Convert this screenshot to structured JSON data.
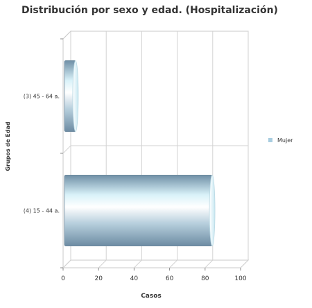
{
  "chart_data": {
    "type": "bar",
    "orientation": "horizontal",
    "title": "Distribución por sexo y edad. (Hospitalización)",
    "xlabel": "Casos",
    "ylabel": "Grupos de Edad",
    "categories": [
      "(3) 45 - 64 a.",
      "(4) 15 - 44 a."
    ],
    "series": [
      {
        "name": "Mujer",
        "values": [
          7,
          84
        ],
        "color": "#8aa7bb"
      }
    ],
    "xlim": [
      0,
      100
    ],
    "xticks": [
      "0",
      "20",
      "40",
      "60",
      "80",
      "100"
    ],
    "grid": true,
    "legend_position": "right",
    "style": "3d-cylinder"
  }
}
